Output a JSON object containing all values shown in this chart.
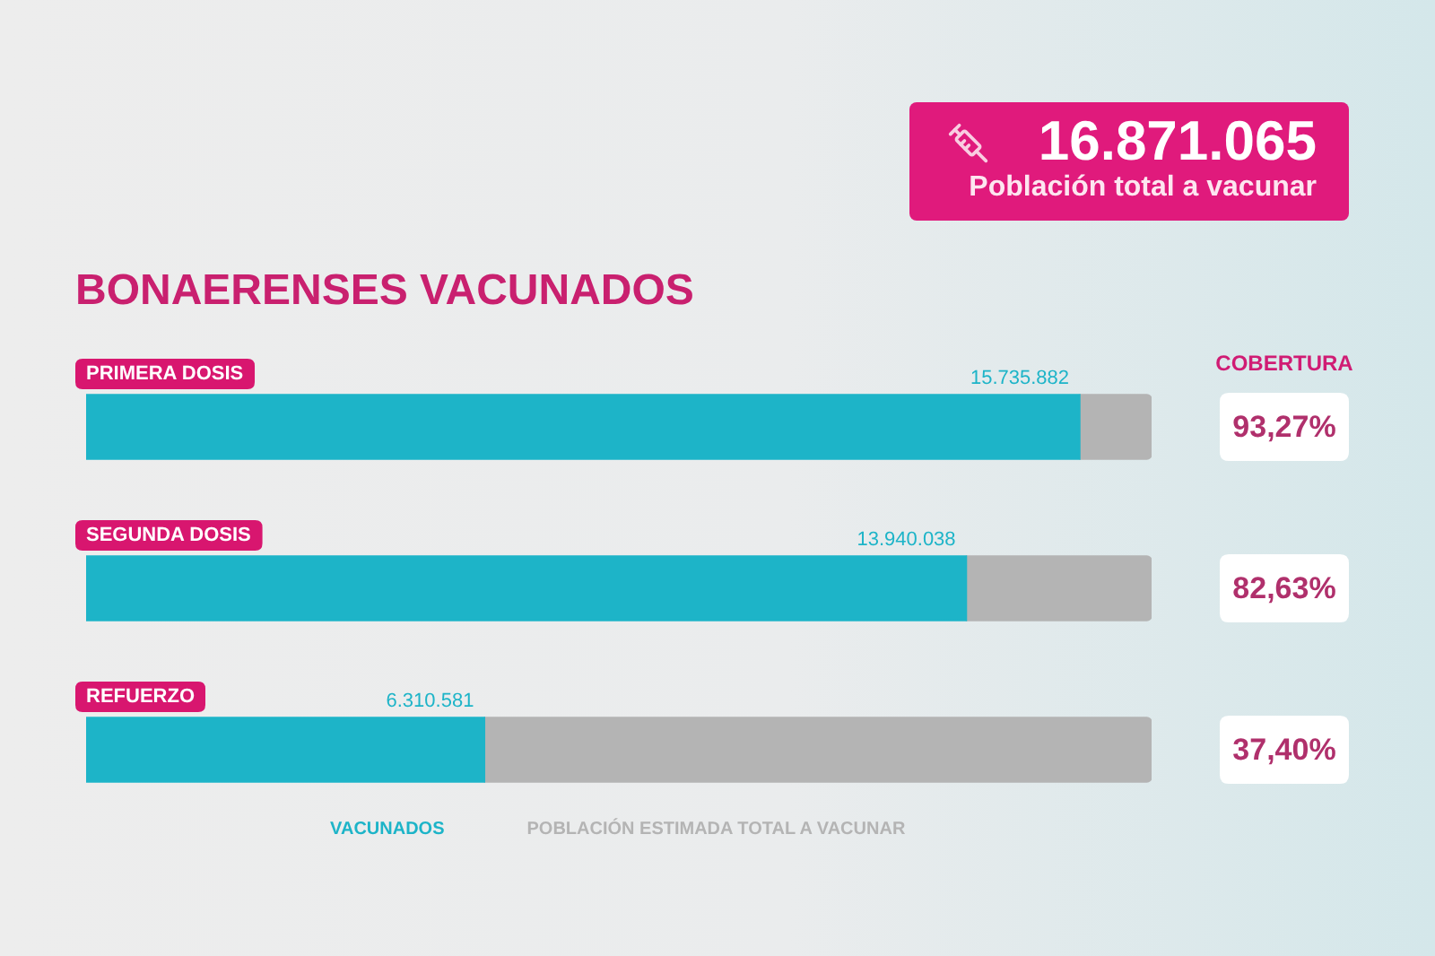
{
  "chart_data": {
    "type": "bar",
    "orientation": "horizontal",
    "stacked": true,
    "title": "BONAERENSES VACUNADOS",
    "categories": [
      "PRIMERA DOSIS",
      "SEGUNDA DOSIS",
      "REFUERZO"
    ],
    "series": [
      {
        "name": "VACUNADOS",
        "color": "#1db4c8",
        "values": [
          15735882,
          13940038,
          6310581
        ],
        "value_labels": [
          "15.735.882",
          "13.940.038",
          "6.310.581"
        ]
      },
      {
        "name": "POBLACIÓN ESTIMADA TOTAL A VACUNAR",
        "color": "#b4b4b4",
        "values": [
          1135183,
          2931027,
          10560484
        ]
      }
    ],
    "xlim": [
      0,
      16871065
    ],
    "tick_labels": "y",
    "grid": false,
    "legend": "bottom",
    "annotations": [
      "16.871.065",
      "Población total a vacunar",
      "COBERTURA",
      "93,27%",
      "82,63%",
      "37,40%"
    ]
  }
}
